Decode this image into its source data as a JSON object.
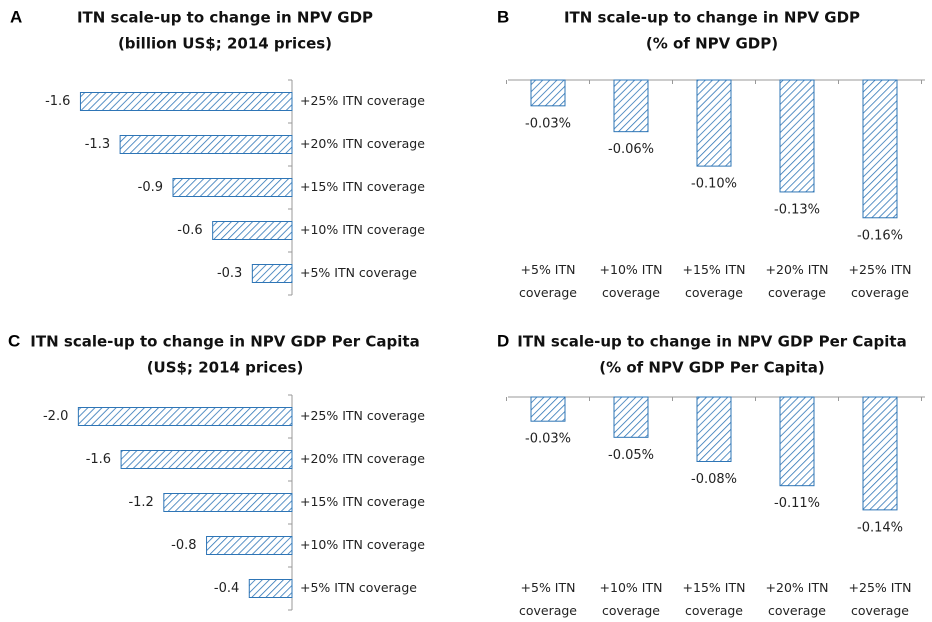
{
  "chart_data": [
    {
      "type": "barh",
      "panel_label": "A",
      "title": "ITN scale-up to change in NPV GDP",
      "subtitle": "(billion US$; 2014 prices)",
      "categories": [
        "+25% ITN coverage",
        "+20% ITN coverage",
        "+15% ITN coverage",
        "+10% ITN coverage",
        "+5% ITN coverage"
      ],
      "values": [
        -1.6,
        -1.3,
        -0.9,
        -0.6,
        -0.3
      ],
      "color": "#2e75b6",
      "xlim": [
        -1.8,
        0
      ]
    },
    {
      "type": "bar",
      "panel_label": "B",
      "title": "ITN scale-up to change in NPV GDP",
      "subtitle": "(% of NPV GDP)",
      "categories": [
        "+5% ITN coverage",
        "+10% ITN coverage",
        "+15% ITN coverage",
        "+20% ITN coverage",
        "+25% ITN coverage"
      ],
      "values": [
        -0.03,
        -0.06,
        -0.1,
        -0.13,
        -0.16
      ],
      "value_labels": [
        "-0.03%",
        "-0.06%",
        "-0.10%",
        "-0.13%",
        "-0.16%"
      ],
      "color": "#2e75b6",
      "ylim": [
        -0.18,
        0
      ]
    },
    {
      "type": "barh",
      "panel_label": "C",
      "title": "ITN scale-up to change in NPV GDP Per Capita",
      "subtitle": "(US$; 2014 prices)",
      "categories": [
        "+25% ITN coverage",
        "+20% ITN coverage",
        "+15% ITN coverage",
        "+10% ITN coverage",
        "+5% ITN coverage"
      ],
      "values": [
        -2.0,
        -1.6,
        -1.2,
        -0.8,
        -0.4
      ],
      "value_labels": [
        "-2.0",
        "-1.6",
        "-1.2",
        "-0.8",
        "-0.4"
      ],
      "color": "#2e75b6",
      "xlim": [
        -2.2,
        0
      ]
    },
    {
      "type": "bar",
      "panel_label": "D",
      "title": "ITN scale-up to change in NPV GDP Per Capita",
      "subtitle": "(% of NPV GDP Per Capita)",
      "categories": [
        "+5% ITN coverage",
        "+10% ITN coverage",
        "+15% ITN coverage",
        "+20% ITN coverage",
        "+25% ITN coverage"
      ],
      "values": [
        -0.03,
        -0.05,
        -0.08,
        -0.11,
        -0.14
      ],
      "value_labels": [
        "-0.03%",
        "-0.05%",
        "-0.08%",
        "-0.11%",
        "-0.14%"
      ],
      "color": "#2e75b6",
      "ylim": [
        -0.16,
        0
      ]
    }
  ]
}
